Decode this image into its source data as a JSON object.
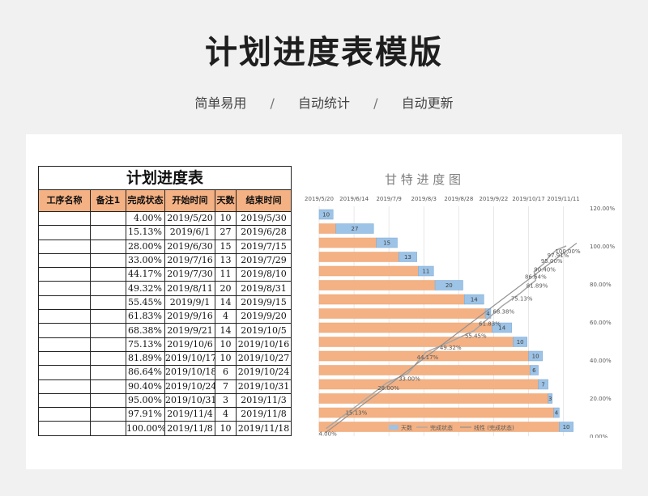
{
  "header": {
    "title": "计划进度表模版",
    "tags": [
      "简单易用",
      "自动统计",
      "自动更新"
    ],
    "separator": "/"
  },
  "table": {
    "title": "计划进度表",
    "columns": [
      "工序名称",
      "备注1",
      "完成状态",
      "开始时间",
      "天数",
      "结束时间"
    ],
    "rows": [
      {
        "name": "",
        "note": "",
        "status": "4.00%",
        "start": "2019/5/20",
        "days": "10",
        "end": "2019/5/30"
      },
      {
        "name": "",
        "note": "",
        "status": "15.13%",
        "start": "2019/6/1",
        "days": "27",
        "end": "2019/6/28"
      },
      {
        "name": "",
        "note": "",
        "status": "28.00%",
        "start": "2019/6/30",
        "days": "15",
        "end": "2019/7/15"
      },
      {
        "name": "",
        "note": "",
        "status": "33.00%",
        "start": "2019/7/16",
        "days": "13",
        "end": "2019/7/29"
      },
      {
        "name": "",
        "note": "",
        "status": "44.17%",
        "start": "2019/7/30",
        "days": "11",
        "end": "2019/8/10"
      },
      {
        "name": "",
        "note": "",
        "status": "49.32%",
        "start": "2019/8/11",
        "days": "20",
        "end": "2019/8/31"
      },
      {
        "name": "",
        "note": "",
        "status": "55.45%",
        "start": "2019/9/1",
        "days": "14",
        "end": "2019/9/15"
      },
      {
        "name": "",
        "note": "",
        "status": "61.83%",
        "start": "2019/9/16",
        "days": "4",
        "end": "2019/9/20"
      },
      {
        "name": "",
        "note": "",
        "status": "68.38%",
        "start": "2019/9/21",
        "days": "14",
        "end": "2019/10/5"
      },
      {
        "name": "",
        "note": "",
        "status": "75.13%",
        "start": "2019/10/6",
        "days": "10",
        "end": "2019/10/16"
      },
      {
        "name": "",
        "note": "",
        "status": "81.89%",
        "start": "2019/10/17",
        "days": "10",
        "end": "2019/10/27"
      },
      {
        "name": "",
        "note": "",
        "status": "86.64%",
        "start": "2019/10/18",
        "days": "6",
        "end": "2019/10/24"
      },
      {
        "name": "",
        "note": "",
        "status": "90.40%",
        "start": "2019/10/24",
        "days": "7",
        "end": "2019/10/31"
      },
      {
        "name": "",
        "note": "",
        "status": "95.00%",
        "start": "2019/10/31",
        "days": "3",
        "end": "2019/11/3"
      },
      {
        "name": "",
        "note": "",
        "status": "97.91%",
        "start": "2019/11/4",
        "days": "4",
        "end": "2019/11/8"
      },
      {
        "name": "",
        "note": "",
        "status": "100.00%",
        "start": "2019/11/8",
        "days": "10",
        "end": "2019/11/18"
      }
    ]
  },
  "chart_data": {
    "type": "bar",
    "title": "甘 特 进 度 图",
    "x_axis_ticks": [
      "2019/5/20",
      "2019/6/14",
      "2019/7/9",
      "2019/8/3",
      "2019/8/28",
      "2019/9/22",
      "2019/10/17",
      "2019/11/11"
    ],
    "x_range": [
      "2019/5/20",
      "2019/11/24"
    ],
    "y2_axis_ticks": [
      "0.00%",
      "20.00%",
      "40.00%",
      "60.00%",
      "80.00%",
      "100.00%",
      "120.00%"
    ],
    "y2_range": [
      0,
      120
    ],
    "legend": [
      "天数",
      "完成状态",
      "线性 (完成状态)"
    ],
    "legend_position": "bottom",
    "start_dates": [
      "2019/5/20",
      "2019/6/1",
      "2019/6/30",
      "2019/7/16",
      "2019/7/30",
      "2019/8/11",
      "2019/9/1",
      "2019/9/16",
      "2019/9/21",
      "2019/10/6",
      "2019/10/17",
      "2019/10/18",
      "2019/10/24",
      "2019/10/31",
      "2019/11/4",
      "2019/11/8"
    ],
    "days": [
      10,
      27,
      15,
      13,
      11,
      20,
      14,
      4,
      14,
      10,
      10,
      6,
      7,
      3,
      4,
      10
    ],
    "completion": [
      4.0,
      15.13,
      28.0,
      33.0,
      44.17,
      49.32,
      55.45,
      61.83,
      68.38,
      75.13,
      81.89,
      86.64,
      90.4,
      95.0,
      97.91,
      100.0
    ],
    "completion_labels": [
      "4.00%",
      "15.13%",
      "28.00%",
      "33.00%",
      "44.17%",
      "49.32%",
      "55.45%",
      "61.83%",
      "68.38%",
      "75.13%",
      "81.89%",
      "86.64%",
      "90.40%",
      "95.00%",
      "97.91%",
      "100.00%"
    ],
    "colors": {
      "bar": "#f4b183",
      "bar_edge": "#e9a36e",
      "days_box": "#9dc3e6",
      "line": "#a6a6a6",
      "trend": "#909090"
    }
  }
}
